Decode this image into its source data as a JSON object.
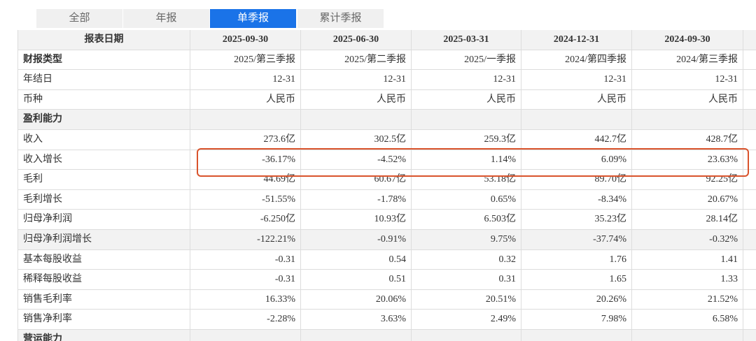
{
  "tabs": [
    "全部",
    "年报",
    "单季报",
    "累计季报"
  ],
  "table": {
    "header": [
      "报表日期",
      "2025-09-30",
      "2025-06-30",
      "2025-03-31",
      "2024-12-31",
      "2024-09-30"
    ],
    "rows": [
      [
        "财报类型",
        "2025/第三季报",
        "2025/第二季报",
        "2025/一季报",
        "2024/第四季报",
        "2024/第三季报"
      ],
      [
        "年结日",
        "12-31",
        "12-31",
        "12-31",
        "12-31",
        "12-31"
      ],
      [
        "币种",
        "人民币",
        "人民币",
        "人民币",
        "人民币",
        "人民币"
      ],
      [
        "盈利能力"
      ],
      [
        "收入",
        "273.6亿",
        "302.5亿",
        "259.3亿",
        "442.7亿",
        "428.7亿"
      ],
      [
        "收入增长",
        "-36.17%",
        "-4.52%",
        "1.14%",
        "6.09%",
        "23.63%"
      ],
      [
        "毛利",
        "44.69亿",
        "60.67亿",
        "53.18亿",
        "89.70亿",
        "92.25亿"
      ],
      [
        "毛利增长",
        "-51.55%",
        "-1.78%",
        "0.65%",
        "-8.34%",
        "20.67%"
      ],
      [
        "归母净利润",
        "-6.250亿",
        "10.93亿",
        "6.503亿",
        "35.23亿",
        "28.14亿"
      ],
      [
        "归母净利润增长",
        "-122.21%",
        "-0.91%",
        "9.75%",
        "-37.74%",
        "-0.32%"
      ],
      [
        "基本每股收益",
        "-0.31",
        "0.54",
        "0.32",
        "1.76",
        "1.41"
      ],
      [
        "稀释每股收益",
        "-0.31",
        "0.51",
        "0.31",
        "1.65",
        "1.33"
      ],
      [
        "销售毛利率",
        "16.33%",
        "20.06%",
        "20.51%",
        "20.26%",
        "21.52%"
      ],
      [
        "销售净利率",
        "-2.28%",
        "3.63%",
        "2.49%",
        "7.98%",
        "6.58%"
      ],
      [
        "营运能力"
      ]
    ]
  }
}
